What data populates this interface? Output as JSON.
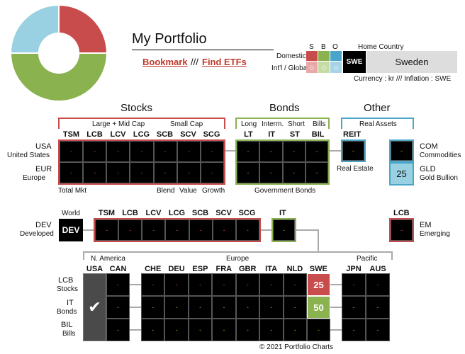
{
  "header": {
    "title": "My Portfolio",
    "bookmark": "Bookmark",
    "separator": "///",
    "find_etfs": "Find ETFs",
    "sbo": [
      "S",
      "B",
      "O"
    ],
    "home_country_label": "Home Country",
    "domestic": "Domestic",
    "intl_global": "Int'l / Global",
    "country_code": "SWE",
    "country_name": "Sweden",
    "currency_info": "Currency : kr  ///  Inflation : SWE"
  },
  "colors": {
    "stocks": "#c94c4c",
    "bonds": "#8ab24e",
    "other": "#4aa6c9",
    "lightblue": "#99d0e2"
  },
  "sections": {
    "stocks": "Stocks",
    "bonds": "Bonds",
    "other": "Other"
  },
  "stocks": {
    "group1": "Large + Mid Cap",
    "group2": "Small Cap",
    "columns": [
      "TSM",
      "LCB",
      "LCV",
      "LCG",
      "SCB",
      "SCV",
      "SCG"
    ],
    "footer": [
      "Total Mkt",
      "Blend",
      "Value",
      "Growth"
    ]
  },
  "bonds": {
    "groups": [
      "Long",
      "Interm.",
      "Short",
      "Bills"
    ],
    "columns": [
      "LT",
      "IT",
      "ST",
      "BIL"
    ],
    "footer": "Government Bonds"
  },
  "other": {
    "group": "Real Assets",
    "reit": "REIT",
    "reit_label": "Real Estate",
    "com": "COM",
    "com_label": "Commodities",
    "gld": "GLD",
    "gld_label": "Gold Bullion",
    "gld_value": "25"
  },
  "rows": {
    "usa": "USA",
    "usa_sub": "United States",
    "eur": "EUR",
    "eur_sub": "Europe",
    "dev": "DEV",
    "dev_sub": "Developed",
    "em": "EM",
    "em_sub": "Emerging"
  },
  "dev": {
    "world": "World",
    "box": "DEV",
    "columns": [
      "TSM",
      "LCB",
      "LCV",
      "LCG",
      "SCB",
      "SCV",
      "SCG"
    ],
    "it": "IT",
    "lcb": "LCB"
  },
  "regions": {
    "n_america": "N. America",
    "europe": "Europe",
    "pacific": "Pacific",
    "na_cols": [
      "USA",
      "CAN"
    ],
    "eu_cols": [
      "CHE",
      "DEU",
      "ESP",
      "FRA",
      "GBR",
      "ITA",
      "NLD",
      "SWE"
    ],
    "pac_cols": [
      "JPN",
      "AUS"
    ],
    "row_labels": [
      {
        "code": "LCB",
        "sub": "Stocks"
      },
      {
        "code": "IT",
        "sub": "Bonds"
      },
      {
        "code": "BIL",
        "sub": "Bills"
      }
    ],
    "swe_lcb": "25",
    "swe_it": "50",
    "check": "✔"
  },
  "dash": "-",
  "footer": "© 2021 Portfolio Charts"
}
